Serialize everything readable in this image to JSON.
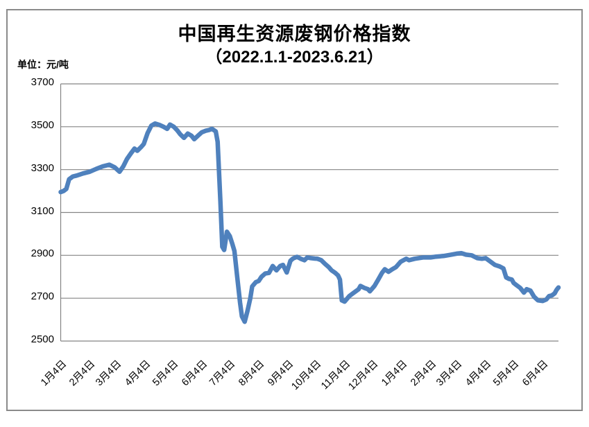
{
  "title": "中国再生资源废钢价格指数",
  "subtitle": "（2022.1.1-2023.6.21）",
  "unit_label": "单位：元/吨",
  "chart_data": {
    "type": "line",
    "title": "中国再生资源废钢价格指数",
    "subtitle": "（2022.1.1-2023.6.21）",
    "ylabel": "元/吨",
    "ylim": [
      2500,
      3700
    ],
    "yticks": [
      2500,
      2700,
      2900,
      3100,
      3300,
      3500,
      3700
    ],
    "grid": true,
    "legend": false,
    "line_color": "#4F81BD",
    "axis_color": "#848484",
    "x_start": "2022-01-04",
    "x_end": "2023-06-21",
    "xticks": [
      {
        "date": "2022-01-04",
        "label": "1月4日"
      },
      {
        "date": "2022-02-04",
        "label": "2月4日"
      },
      {
        "date": "2022-03-04",
        "label": "3月4日"
      },
      {
        "date": "2022-04-04",
        "label": "4月4日"
      },
      {
        "date": "2022-05-04",
        "label": "5月4日"
      },
      {
        "date": "2022-06-04",
        "label": "6月4日"
      },
      {
        "date": "2022-07-04",
        "label": "7月4日"
      },
      {
        "date": "2022-08-04",
        "label": "8月4日"
      },
      {
        "date": "2022-09-04",
        "label": "9月4日"
      },
      {
        "date": "2022-10-04",
        "label": "10月4日"
      },
      {
        "date": "2022-11-04",
        "label": "11月4日"
      },
      {
        "date": "2022-12-04",
        "label": "12月4日"
      },
      {
        "date": "2023-01-04",
        "label": "1月4日"
      },
      {
        "date": "2023-02-04",
        "label": "2月4日"
      },
      {
        "date": "2023-03-04",
        "label": "3月4日"
      },
      {
        "date": "2023-04-04",
        "label": "4月4日"
      },
      {
        "date": "2023-05-04",
        "label": "5月4日"
      },
      {
        "date": "2023-06-04",
        "label": "6月4日"
      }
    ],
    "series": [
      {
        "name": "废钢价格指数",
        "points": [
          [
            "2022-01-04",
            3195
          ],
          [
            "2022-01-07",
            3200
          ],
          [
            "2022-01-10",
            3210
          ],
          [
            "2022-01-13",
            3255
          ],
          [
            "2022-01-17",
            3268
          ],
          [
            "2022-01-21",
            3272
          ],
          [
            "2022-01-28",
            3282
          ],
          [
            "2022-02-04",
            3290
          ],
          [
            "2022-02-11",
            3303
          ],
          [
            "2022-02-18",
            3315
          ],
          [
            "2022-02-25",
            3323
          ],
          [
            "2022-03-03",
            3310
          ],
          [
            "2022-03-08",
            3290
          ],
          [
            "2022-03-12",
            3315
          ],
          [
            "2022-03-16",
            3350
          ],
          [
            "2022-03-20",
            3375
          ],
          [
            "2022-03-24",
            3398
          ],
          [
            "2022-03-27",
            3388
          ],
          [
            "2022-03-31",
            3405
          ],
          [
            "2022-04-03",
            3420
          ],
          [
            "2022-04-07",
            3470
          ],
          [
            "2022-04-11",
            3505
          ],
          [
            "2022-04-15",
            3515
          ],
          [
            "2022-04-20",
            3508
          ],
          [
            "2022-04-24",
            3500
          ],
          [
            "2022-04-28",
            3490
          ],
          [
            "2022-05-01",
            3510
          ],
          [
            "2022-05-05",
            3500
          ],
          [
            "2022-05-09",
            3482
          ],
          [
            "2022-05-12",
            3465
          ],
          [
            "2022-05-16",
            3448
          ],
          [
            "2022-05-20",
            3468
          ],
          [
            "2022-05-24",
            3458
          ],
          [
            "2022-05-27",
            3442
          ],
          [
            "2022-05-31",
            3458
          ],
          [
            "2022-06-04",
            3474
          ],
          [
            "2022-06-08",
            3481
          ],
          [
            "2022-06-12",
            3485
          ],
          [
            "2022-06-15",
            3490
          ],
          [
            "2022-06-19",
            3478
          ],
          [
            "2022-06-21",
            3430
          ],
          [
            "2022-06-24",
            3150
          ],
          [
            "2022-06-26",
            2940
          ],
          [
            "2022-06-28",
            2925
          ],
          [
            "2022-07-01",
            3010
          ],
          [
            "2022-07-04",
            2990
          ],
          [
            "2022-07-07",
            2950
          ],
          [
            "2022-07-09",
            2920
          ],
          [
            "2022-07-12",
            2800
          ],
          [
            "2022-07-15",
            2680
          ],
          [
            "2022-07-17",
            2615
          ],
          [
            "2022-07-20",
            2590
          ],
          [
            "2022-07-23",
            2640
          ],
          [
            "2022-07-26",
            2700
          ],
          [
            "2022-07-28",
            2755
          ],
          [
            "2022-08-01",
            2775
          ],
          [
            "2022-08-04",
            2780
          ],
          [
            "2022-08-07",
            2800
          ],
          [
            "2022-08-11",
            2815
          ],
          [
            "2022-08-15",
            2818
          ],
          [
            "2022-08-19",
            2850
          ],
          [
            "2022-08-23",
            2830
          ],
          [
            "2022-08-27",
            2850
          ],
          [
            "2022-08-30",
            2855
          ],
          [
            "2022-09-03",
            2820
          ],
          [
            "2022-09-07",
            2875
          ],
          [
            "2022-09-10",
            2886
          ],
          [
            "2022-09-14",
            2893
          ],
          [
            "2022-09-18",
            2884
          ],
          [
            "2022-09-22",
            2877
          ],
          [
            "2022-09-25",
            2890
          ],
          [
            "2022-09-29",
            2887
          ],
          [
            "2022-10-03",
            2885
          ],
          [
            "2022-10-06",
            2884
          ],
          [
            "2022-10-10",
            2877
          ],
          [
            "2022-10-14",
            2860
          ],
          [
            "2022-10-18",
            2845
          ],
          [
            "2022-10-21",
            2830
          ],
          [
            "2022-10-25",
            2818
          ],
          [
            "2022-10-28",
            2806
          ],
          [
            "2022-10-30",
            2787
          ],
          [
            "2022-11-01",
            2690
          ],
          [
            "2022-11-04",
            2684
          ],
          [
            "2022-11-09",
            2710
          ],
          [
            "2022-11-14",
            2726
          ],
          [
            "2022-11-19",
            2742
          ],
          [
            "2022-11-21",
            2757
          ],
          [
            "2022-11-25",
            2748
          ],
          [
            "2022-11-29",
            2742
          ],
          [
            "2022-12-01",
            2732
          ],
          [
            "2022-12-06",
            2757
          ],
          [
            "2022-12-10",
            2787
          ],
          [
            "2022-12-14",
            2818
          ],
          [
            "2022-12-17",
            2835
          ],
          [
            "2022-12-21",
            2823
          ],
          [
            "2022-12-25",
            2835
          ],
          [
            "2022-12-29",
            2845
          ],
          [
            "2023-01-03",
            2870
          ],
          [
            "2023-01-09",
            2884
          ],
          [
            "2023-01-12",
            2877
          ],
          [
            "2023-01-18",
            2884
          ],
          [
            "2023-01-27",
            2890
          ],
          [
            "2023-02-04",
            2890
          ],
          [
            "2023-02-10",
            2894
          ],
          [
            "2023-02-18",
            2897
          ],
          [
            "2023-02-26",
            2903
          ],
          [
            "2023-03-04",
            2908
          ],
          [
            "2023-03-09",
            2910
          ],
          [
            "2023-03-14",
            2903
          ],
          [
            "2023-03-20",
            2900
          ],
          [
            "2023-03-26",
            2887
          ],
          [
            "2023-03-31",
            2884
          ],
          [
            "2023-04-04",
            2887
          ],
          [
            "2023-04-09",
            2871
          ],
          [
            "2023-04-14",
            2855
          ],
          [
            "2023-04-19",
            2848
          ],
          [
            "2023-04-23",
            2839
          ],
          [
            "2023-04-26",
            2797
          ],
          [
            "2023-04-29",
            2790
          ],
          [
            "2023-05-02",
            2787
          ],
          [
            "2023-05-04",
            2771
          ],
          [
            "2023-05-07",
            2761
          ],
          [
            "2023-05-11",
            2748
          ],
          [
            "2023-05-15",
            2726
          ],
          [
            "2023-05-18",
            2742
          ],
          [
            "2023-05-22",
            2735
          ],
          [
            "2023-05-26",
            2706
          ],
          [
            "2023-05-30",
            2690
          ],
          [
            "2023-06-04",
            2687
          ],
          [
            "2023-06-08",
            2694
          ],
          [
            "2023-06-11",
            2710
          ],
          [
            "2023-06-14",
            2713
          ],
          [
            "2023-06-17",
            2723
          ],
          [
            "2023-06-19",
            2739
          ],
          [
            "2023-06-21",
            2750
          ]
        ]
      }
    ]
  }
}
